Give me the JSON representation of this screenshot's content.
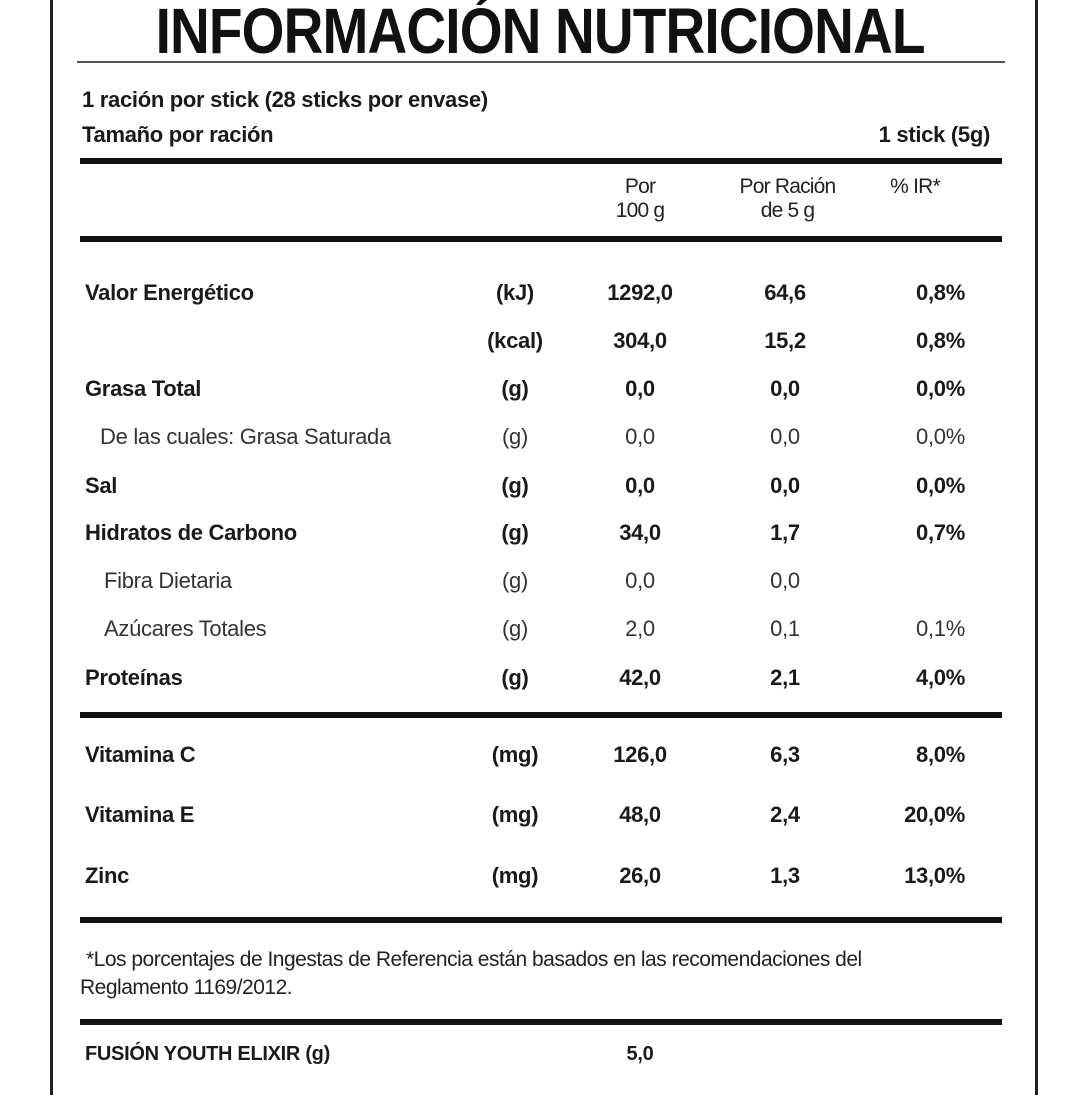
{
  "title": "INFORMACIÓN NUTRICIONAL",
  "serving_info": {
    "servings_line": "1 ración por stick (28 sticks por envase)",
    "size_label": "Tamaño por ración",
    "size_value": "1 stick (5g)"
  },
  "headers": {
    "per100_line1": "Por",
    "per100_line2": "100 g",
    "serving_line1": "Por Ración",
    "serving_line2": "de 5 g",
    "ir": "% IR*"
  },
  "nutrients": [
    {
      "label": "Valor Energético",
      "unit": "(kJ)",
      "per100": "1292,0",
      "per_serving": "64,6",
      "ir": "0,8%",
      "style": "bold"
    },
    {
      "label": "",
      "unit": "(kcal)",
      "per100": "304,0",
      "per_serving": "15,2",
      "ir": "0,8%",
      "style": "bold"
    },
    {
      "label": "Grasa Total",
      "unit": "(g)",
      "per100": "0,0",
      "per_serving": "0,0",
      "ir": "0,0%",
      "style": "bold"
    },
    {
      "label": "De las cuales: Grasa Saturada",
      "unit": "(g)",
      "per100": "0,0",
      "per_serving": "0,0",
      "ir": "0,0%",
      "style": "light indent"
    },
    {
      "label": "Sal",
      "unit": "(g)",
      "per100": "0,0",
      "per_serving": "0,0",
      "ir": "0,0%",
      "style": "bold"
    },
    {
      "label": "Hidratos de Carbono",
      "unit": "(g)",
      "per100": "34,0",
      "per_serving": "1,7",
      "ir": "0,7%",
      "style": "bold"
    },
    {
      "label": "Fibra Dietaria",
      "unit": "(g)",
      "per100": "0,0",
      "per_serving": "0,0",
      "ir": "",
      "style": "light indent2"
    },
    {
      "label": "Azúcares Totales",
      "unit": "(g)",
      "per100": "2,0",
      "per_serving": "0,1",
      "ir": "0,1%",
      "style": "light indent2"
    },
    {
      "label": "Proteínas",
      "unit": "(g)",
      "per100": "42,0",
      "per_serving": "2,1",
      "ir": "4,0%",
      "style": "bold"
    }
  ],
  "vitamins": [
    {
      "label": "Vitamina C",
      "unit": "(mg)",
      "per100": "126,0",
      "per_serving": "6,3",
      "ir": "8,0%",
      "style": "bold"
    },
    {
      "label": "Vitamina E",
      "unit": "(mg)",
      "per100": "48,0",
      "per_serving": "2,4",
      "ir": "20,0%",
      "style": "bold"
    },
    {
      "label": "Zinc",
      "unit": "(mg)",
      "per100": "26,0",
      "per_serving": "1,3",
      "ir": "13,0%",
      "style": "bold"
    }
  ],
  "footnote": {
    "line1": "*Los porcentajes de Ingestas de Referencia están basados en las recomendaciones del",
    "line2": "Reglamento 1169/2012."
  },
  "ingredient": {
    "label": "FUSIÓN YOUTH ELIXIR (g)",
    "value": "5,0"
  }
}
